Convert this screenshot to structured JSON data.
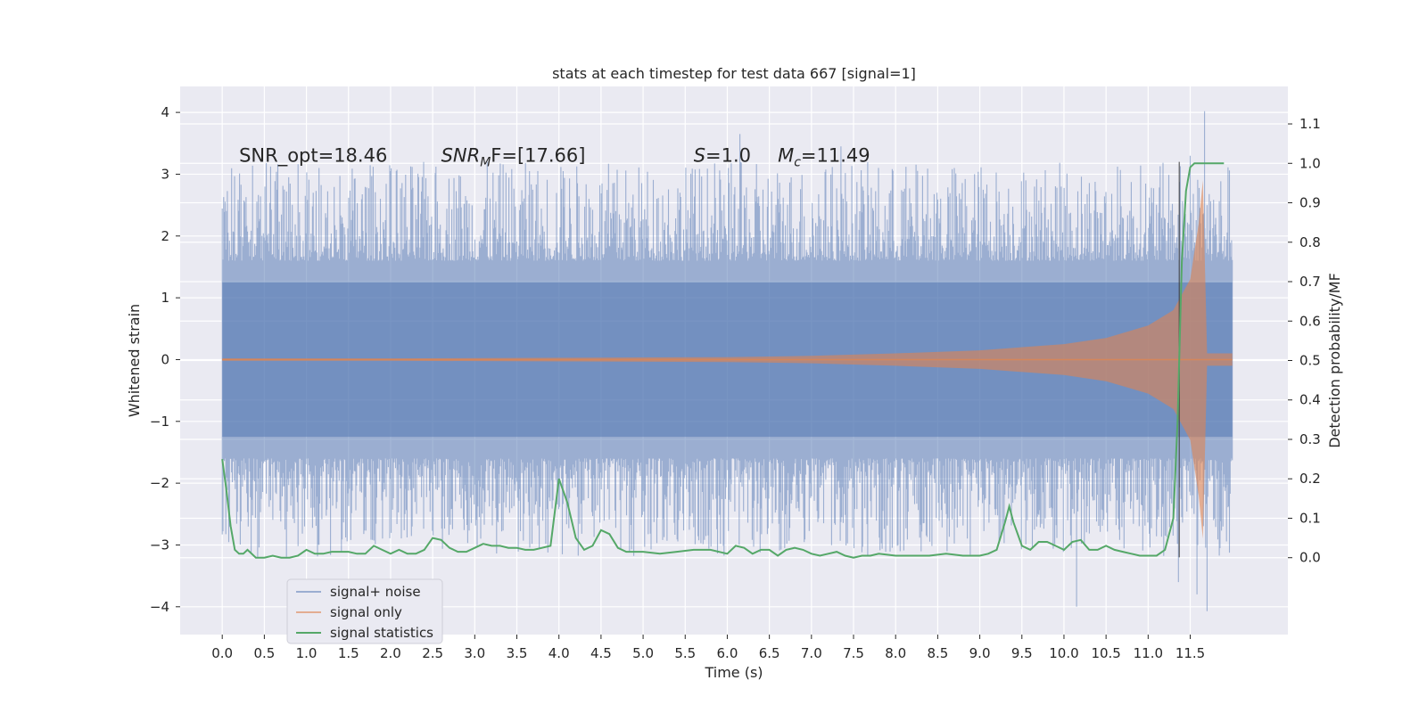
{
  "chart_data": {
    "type": "line",
    "title": "stats at each timestep for test data 667 [signal=1]",
    "xlabel": "Time (s)",
    "ylabel": "Whitened strain",
    "y2label": "Detection probability/MF",
    "xlim": [
      -0.5,
      12.66
    ],
    "ylim": [
      -4.45,
      4.42
    ],
    "y2lim": [
      -0.195,
      1.195
    ],
    "x_ticks": [
      0.0,
      0.5,
      1.0,
      1.5,
      2.0,
      2.5,
      3.0,
      3.5,
      4.0,
      4.5,
      5.0,
      5.5,
      6.0,
      6.5,
      7.0,
      7.5,
      8.0,
      8.5,
      9.0,
      9.5,
      10.0,
      10.5,
      11.0,
      11.5
    ],
    "x_tick_labels": [
      "0.0",
      "0.5",
      "1.0",
      "1.5",
      "2.0",
      "2.5",
      "3.0",
      "3.5",
      "4.0",
      "4.5",
      "5.0",
      "5.5",
      "6.0",
      "6.5",
      "7.0",
      "7.5",
      "8.0",
      "8.5",
      "9.0",
      "9.5",
      "10.0",
      "10.5",
      "11.0",
      "11.5"
    ],
    "y_ticks": [
      -4,
      -3,
      -2,
      -1,
      0,
      1,
      2,
      3,
      4
    ],
    "y_tick_labels": [
      "−4",
      "−3",
      "−2",
      "−1",
      "0",
      "1",
      "2",
      "3",
      "4"
    ],
    "y2_ticks": [
      0.0,
      0.1,
      0.2,
      0.3,
      0.4,
      0.5,
      0.6,
      0.7,
      0.8,
      0.9,
      1.0,
      1.1
    ],
    "y2_tick_labels": [
      "0.0",
      "0.1",
      "0.2",
      "0.3",
      "0.4",
      "0.5",
      "0.6",
      "0.7",
      "0.8",
      "0.9",
      "1.0",
      "1.1"
    ],
    "grid": true,
    "legend_position": "lower-left",
    "annotations": [
      {
        "label": "SNR_opt=18.46",
        "x": 0.2,
        "y": 3.2
      },
      {
        "label": "SNR",
        "sub": "M",
        "suffix": "F=[17.66]",
        "x": 2.6,
        "y": 3.2
      },
      {
        "label": "S",
        "suffix": "=1.0",
        "x": 5.6,
        "y": 3.2
      },
      {
        "label": "M",
        "sub": "c",
        "suffix": "=11.49",
        "x": 6.6,
        "y": 3.2
      }
    ],
    "series": [
      {
        "name": "signal+ noise",
        "color": "#4c72b0",
        "alpha": 0.5,
        "axis": "left",
        "x_range": [
          0.0,
          12.0
        ],
        "typical_envelope": 2.2,
        "peak_max": 4.02,
        "peak_min": -4.07
      },
      {
        "name": "signal only",
        "color": "#dd8452",
        "alpha": 0.6,
        "axis": "left",
        "x": [
          0.0,
          2.0,
          4.0,
          6.0,
          7.0,
          8.0,
          9.0,
          10.0,
          10.5,
          11.0,
          11.3,
          11.5,
          11.6,
          11.65,
          11.7,
          12.0
        ],
        "amplitude": [
          0.02,
          0.02,
          0.03,
          0.04,
          0.06,
          0.1,
          0.15,
          0.25,
          0.35,
          0.55,
          0.8,
          1.3,
          2.2,
          2.9,
          0.1,
          0.1
        ]
      },
      {
        "name": "signal statistics",
        "color": "#55a868",
        "axis": "right",
        "x": [
          0.0,
          0.05,
          0.1,
          0.15,
          0.2,
          0.25,
          0.3,
          0.4,
          0.5,
          0.6,
          0.7,
          0.8,
          0.9,
          1.0,
          1.1,
          1.2,
          1.3,
          1.4,
          1.5,
          1.6,
          1.7,
          1.8,
          1.9,
          2.0,
          2.1,
          2.2,
          2.3,
          2.4,
          2.5,
          2.6,
          2.7,
          2.8,
          2.9,
          3.0,
          3.1,
          3.2,
          3.3,
          3.4,
          3.5,
          3.6,
          3.7,
          3.8,
          3.9,
          4.0,
          4.1,
          4.2,
          4.3,
          4.4,
          4.5,
          4.6,
          4.7,
          4.8,
          4.9,
          5.0,
          5.2,
          5.4,
          5.6,
          5.8,
          6.0,
          6.1,
          6.2,
          6.3,
          6.4,
          6.5,
          6.6,
          6.7,
          6.8,
          6.9,
          7.0,
          7.1,
          7.2,
          7.3,
          7.4,
          7.5,
          7.6,
          7.7,
          7.8,
          8.0,
          8.2,
          8.4,
          8.6,
          8.8,
          9.0,
          9.1,
          9.2,
          9.3,
          9.35,
          9.4,
          9.5,
          9.6,
          9.7,
          9.8,
          9.9,
          10.0,
          10.1,
          10.2,
          10.3,
          10.4,
          10.5,
          10.6,
          10.7,
          10.8,
          10.9,
          11.0,
          11.1,
          11.2,
          11.3,
          11.35,
          11.4,
          11.45,
          11.5,
          11.55,
          11.6,
          11.7,
          11.8,
          11.9
        ],
        "values": [
          0.25,
          0.17,
          0.08,
          0.02,
          0.01,
          0.01,
          0.02,
          0.0,
          0.0,
          0.005,
          0.0,
          0.0,
          0.005,
          0.02,
          0.01,
          0.01,
          0.015,
          0.015,
          0.015,
          0.01,
          0.01,
          0.03,
          0.02,
          0.01,
          0.02,
          0.01,
          0.01,
          0.02,
          0.05,
          0.045,
          0.025,
          0.015,
          0.015,
          0.025,
          0.035,
          0.03,
          0.03,
          0.025,
          0.025,
          0.02,
          0.02,
          0.025,
          0.03,
          0.2,
          0.14,
          0.05,
          0.02,
          0.03,
          0.07,
          0.06,
          0.025,
          0.015,
          0.015,
          0.015,
          0.01,
          0.015,
          0.02,
          0.02,
          0.01,
          0.03,
          0.025,
          0.01,
          0.02,
          0.02,
          0.005,
          0.02,
          0.025,
          0.02,
          0.01,
          0.005,
          0.01,
          0.015,
          0.005,
          0.0,
          0.005,
          0.005,
          0.01,
          0.005,
          0.005,
          0.005,
          0.01,
          0.005,
          0.005,
          0.01,
          0.02,
          0.09,
          0.13,
          0.09,
          0.03,
          0.02,
          0.04,
          0.04,
          0.03,
          0.02,
          0.04,
          0.045,
          0.02,
          0.02,
          0.03,
          0.02,
          0.015,
          0.01,
          0.005,
          0.005,
          0.005,
          0.02,
          0.1,
          0.35,
          0.75,
          0.93,
          0.99,
          1.0,
          1.0,
          1.0,
          1.0,
          1.0
        ]
      }
    ]
  }
}
